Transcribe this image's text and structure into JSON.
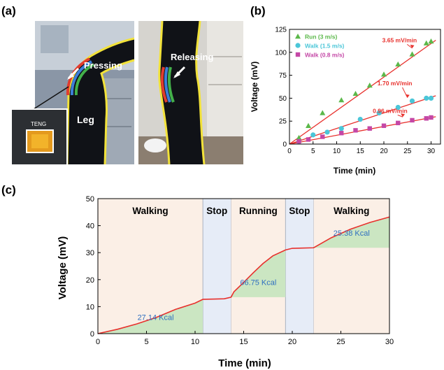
{
  "panel_labels": {
    "a": "(a)",
    "b": "(b)",
    "c": "(c)"
  },
  "photo_labels": {
    "pressing": "Pressing",
    "releasing": "Releasing",
    "leg": "Leg",
    "teng": "TENG"
  },
  "chart_data": [
    {
      "type": "scatter",
      "xlabel": "Time (min)",
      "ylabel": "Voltage (mV)",
      "xlim": [
        0,
        32
      ],
      "ylim": [
        0,
        125
      ],
      "xticks": [
        0,
        5,
        10,
        15,
        20,
        25,
        30
      ],
      "yticks": [
        0,
        25,
        50,
        75,
        100,
        125
      ],
      "legend_position": "top-left",
      "fit_color": "#e8302c",
      "series": [
        {
          "name": "Run (3 m/s)",
          "marker": "triangle",
          "color": "#5bb84a",
          "x": [
            2,
            4,
            7,
            11,
            14,
            17,
            20,
            23,
            26,
            29,
            30
          ],
          "y": [
            7,
            20,
            34,
            48,
            55,
            64,
            76,
            87,
            98,
            110,
            112
          ],
          "fit": [
            [
              0,
              0
            ],
            [
              31,
              113.2
            ]
          ],
          "rate_label": "3.65 mV/min"
        },
        {
          "name": "Walk (1.5 m/s)",
          "marker": "circle",
          "color": "#4bc6d8",
          "x": [
            2,
            5,
            8,
            11,
            15,
            19,
            23,
            26,
            29,
            30
          ],
          "y": [
            3,
            10,
            13,
            17,
            27,
            34,
            40,
            47,
            50,
            50
          ],
          "fit": [
            [
              0,
              0
            ],
            [
              31,
              52.7
            ]
          ],
          "rate_label": "1.70 mV/min"
        },
        {
          "name": "Walk (0.8 m/s)",
          "marker": "square",
          "color": "#c447a6",
          "x": [
            2,
            4,
            7,
            11,
            14,
            17,
            20,
            23,
            26,
            29,
            30
          ],
          "y": [
            3,
            5,
            8,
            12,
            15,
            17,
            20,
            23,
            26,
            28,
            29
          ],
          "fit": [
            [
              0,
              0
            ],
            [
              31,
              29.8
            ]
          ],
          "rate_label": "0.96 mV/min"
        }
      ]
    },
    {
      "type": "line",
      "xlabel": "Time (min)",
      "ylabel": "Voltage (mV)",
      "xlim": [
        0,
        30
      ],
      "ylim": [
        0,
        50
      ],
      "xticks": [
        0,
        5,
        10,
        15,
        20,
        25,
        30
      ],
      "yticks": [
        0,
        10,
        20,
        30,
        40,
        50
      ],
      "line_color": "#e8302c",
      "line": {
        "x": [
          0,
          2,
          4,
          6,
          8,
          10,
          10.8,
          12,
          13,
          13.7,
          14,
          15,
          16,
          17,
          18,
          19.3,
          20,
          21,
          22.2,
          24,
          26,
          28,
          30
        ],
        "y": [
          0,
          1.6,
          3.6,
          6.0,
          9.0,
          11.3,
          12.7,
          12.8,
          12.9,
          13.5,
          15.5,
          19.0,
          22.6,
          26.0,
          28.8,
          31.0,
          31.6,
          31.7,
          31.8,
          35.5,
          38.7,
          41.2,
          43.2
        ]
      },
      "segments": [
        {
          "label": "Walking",
          "start": 0,
          "end": 10.8,
          "kind": "activity"
        },
        {
          "label": "Stop",
          "start": 10.8,
          "end": 13.7,
          "kind": "stop"
        },
        {
          "label": "Running",
          "start": 13.7,
          "end": 19.3,
          "kind": "activity"
        },
        {
          "label": "Stop",
          "start": 19.3,
          "end": 22.2,
          "kind": "stop"
        },
        {
          "label": "Walking",
          "start": 22.2,
          "end": 30,
          "kind": "activity"
        }
      ],
      "energy_labels": [
        {
          "text": "27.14 Kcal",
          "start": 0,
          "end": 10.8
        },
        {
          "text": "66.75 Kcal",
          "start": 13.7,
          "end": 19.3
        },
        {
          "text": "25.38 Kcal",
          "start": 22.2,
          "end": 30
        }
      ],
      "colors": {
        "activity_bg": "#fbefe6",
        "stop_bg": "#e6ecf7",
        "fill": "#cbe6c2",
        "energy_text": "#2f6fc0"
      }
    }
  ]
}
